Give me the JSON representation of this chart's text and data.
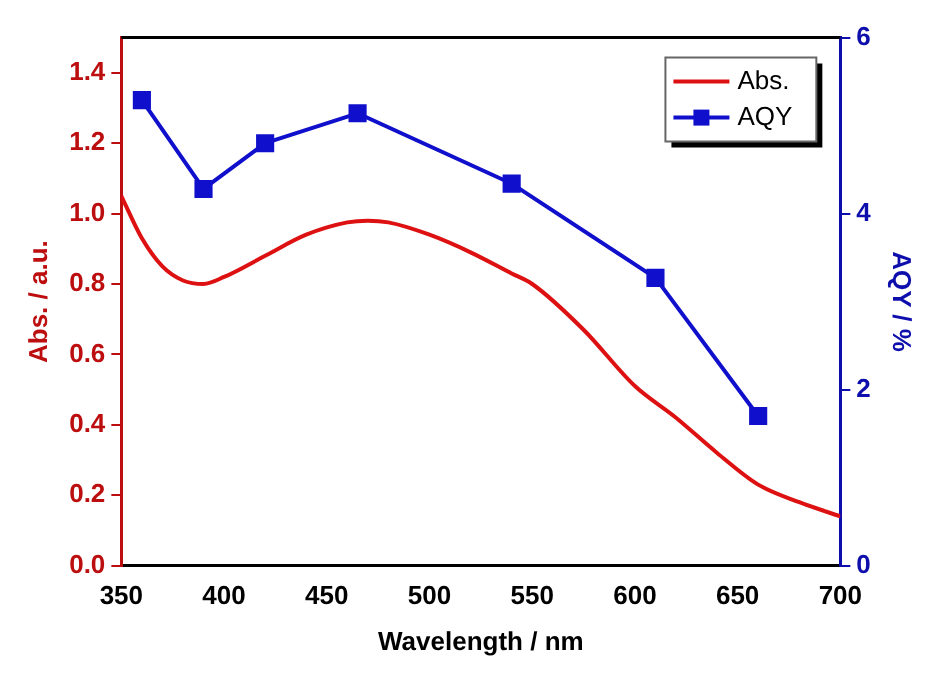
{
  "chart_data": {
    "type": "line",
    "xlabel": "Wavelength / nm",
    "ylabel": "Abs. / a.u.",
    "y2label": "AQY / %",
    "xlim": [
      350,
      700
    ],
    "xticks": [
      350,
      400,
      450,
      500,
      550,
      600,
      650,
      700
    ],
    "ylim": [
      0,
      1.5
    ],
    "yticks": [
      {
        "value": 0,
        "label": "0.0"
      },
      0.2,
      0.4,
      0.6,
      0.8,
      {
        "value": 1,
        "label": "1.0"
      },
      1.2,
      1.4
    ],
    "y2lim": [
      0,
      6
    ],
    "y2ticks": [
      0,
      2,
      4,
      6
    ],
    "grid": false,
    "legend": "top right",
    "line_style": "solid",
    "series": [
      {
        "name": "Abs.",
        "color": "#dd1111",
        "marker": "none",
        "x": [
          350,
          360,
          370,
          380,
          390,
          400,
          420,
          440,
          460,
          470,
          480,
          500,
          520,
          540,
          550,
          575,
          600,
          620,
          640,
          660,
          680,
          700
        ],
        "values": [
          1.05,
          0.93,
          0.85,
          0.81,
          0.8,
          0.82,
          0.88,
          0.94,
          0.975,
          0.98,
          0.975,
          0.94,
          0.89,
          0.83,
          0.8,
          0.67,
          0.51,
          0.42,
          0.32,
          0.23,
          0.18,
          0.14
        ]
      },
      {
        "name": "AQY",
        "color": "#1010cc",
        "marker": "square",
        "axis": "y2",
        "x": [
          360,
          390,
          420,
          465,
          540,
          610,
          660
        ],
        "values": [
          5.29,
          4.28,
          4.8,
          5.14,
          4.34,
          3.27,
          1.7
        ]
      }
    ]
  }
}
